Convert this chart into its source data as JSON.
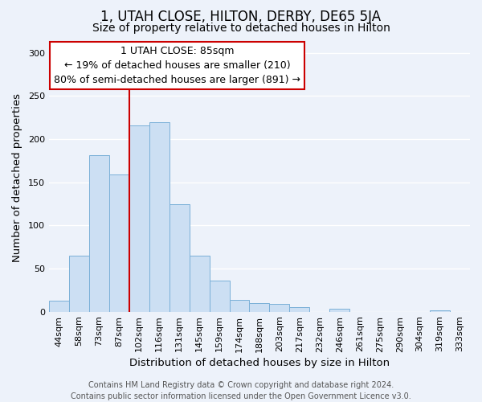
{
  "title": "1, UTAH CLOSE, HILTON, DERBY, DE65 5JA",
  "subtitle": "Size of property relative to detached houses in Hilton",
  "xlabel": "Distribution of detached houses by size in Hilton",
  "ylabel": "Number of detached properties",
  "categories": [
    "44sqm",
    "58sqm",
    "73sqm",
    "87sqm",
    "102sqm",
    "116sqm",
    "131sqm",
    "145sqm",
    "159sqm",
    "174sqm",
    "188sqm",
    "203sqm",
    "217sqm",
    "232sqm",
    "246sqm",
    "261sqm",
    "275sqm",
    "290sqm",
    "304sqm",
    "319sqm",
    "333sqm"
  ],
  "values": [
    13,
    65,
    181,
    159,
    216,
    220,
    125,
    65,
    36,
    14,
    10,
    9,
    5,
    0,
    3,
    0,
    0,
    0,
    0,
    2,
    0
  ],
  "bar_color": "#ccdff3",
  "bar_edge_color": "#7ab0d8",
  "vline_color": "#cc0000",
  "vline_x_index": 3,
  "annotation_lines": [
    "1 UTAH CLOSE: 85sqm",
    "← 19% of detached houses are smaller (210)",
    "80% of semi-detached houses are larger (891) →"
  ],
  "annotation_box_color": "#ffffff",
  "annotation_box_edge_color": "#cc0000",
  "ylim": [
    0,
    310
  ],
  "yticks": [
    0,
    50,
    100,
    150,
    200,
    250,
    300
  ],
  "footer_line1": "Contains HM Land Registry data © Crown copyright and database right 2024.",
  "footer_line2": "Contains public sector information licensed under the Open Government Licence v3.0.",
  "background_color": "#edf2fa",
  "grid_color": "#ffffff",
  "title_fontsize": 12,
  "subtitle_fontsize": 10,
  "axis_label_fontsize": 9.5,
  "tick_fontsize": 8,
  "annotation_fontsize": 9,
  "footer_fontsize": 7
}
